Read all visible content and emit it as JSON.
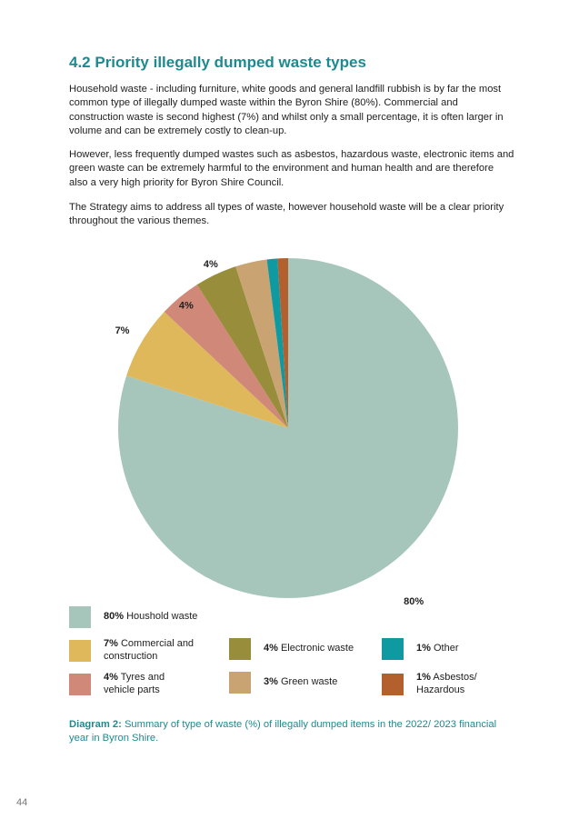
{
  "heading": "4.2 Priority illegally dumped waste types",
  "paragraphs": [
    "Household waste - including furniture, white goods and general landfill rubbish is by far the most common type of illegally dumped waste within the Byron Shire (80%). Commercial and construction waste is second highest (7%) and whilst only a small percentage, it is often larger in volume and can be extremely costly to clean-up.",
    "However, less frequently dumped wastes such as asbestos, hazardous waste, electronic items and green waste can be extremely harmful to the environment and human health and are therefore also a very high priority for Byron Shire Council.",
    "The Strategy aims to address all types of waste, however household waste will be a clear priority throughout the various themes."
  ],
  "chart_data": {
    "type": "pie",
    "title": "",
    "start": "12 o'clock",
    "direction": "clockwise",
    "slices": [
      {
        "label_pct": "80%",
        "label_name": "Houshold waste",
        "value": 80,
        "color": "#a7c6bb"
      },
      {
        "label_pct": "7%",
        "label_name": "Commercial and construction",
        "value": 7,
        "color": "#e0b85c"
      },
      {
        "label_pct": "4%",
        "label_name": "Tyres and vehicle parts",
        "value": 4,
        "color": "#d08878"
      },
      {
        "label_pct": "4%",
        "label_name": "Electronic waste",
        "value": 4,
        "color": "#978d3b"
      },
      {
        "label_pct": "3%",
        "label_name": "Green waste",
        "value": 3,
        "color": "#c9a472"
      },
      {
        "label_pct": "1%",
        "label_name": "Other",
        "value": 1,
        "color": "#0e9aa0"
      },
      {
        "label_pct": "1%",
        "label_name": "Asbestos/ Hazardous",
        "value": 1,
        "color": "#b3602e"
      }
    ]
  },
  "legend": [
    {
      "pct": "80%",
      "name": "Houshold waste"
    },
    {
      "pct": "7%",
      "name": "Commercial and construction"
    },
    {
      "pct": "4%",
      "name": "Tyres and vehicle parts"
    },
    {
      "pct": "4%",
      "name": "Electronic waste"
    },
    {
      "pct": "3%",
      "name": "Green waste"
    },
    {
      "pct": "1%",
      "name": "Other"
    },
    {
      "pct": "1%",
      "name": "Asbestos/ Hazardous"
    }
  ],
  "caption": {
    "label": "Diagram 2:",
    "text": "Summary of type of waste (%) of illegally dumped items in the 2022/ 2023 financial year in Byron Shire."
  },
  "page_number": "44"
}
